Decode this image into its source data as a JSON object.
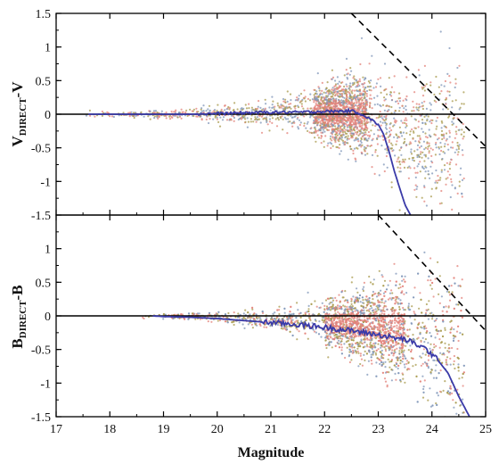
{
  "figure": {
    "xlabel": "Magnitude",
    "x_ticks": [
      "17",
      "18",
      "19",
      "20",
      "21",
      "22",
      "23",
      "24",
      "25"
    ],
    "colors": {
      "median_line": "#3a3aa8",
      "points_red": "#e3817a",
      "points_olive": "#a89a4c",
      "points_blue": "#7f96b8",
      "axes": "#000000"
    }
  },
  "chart_data": [
    {
      "type": "scatter",
      "panel": "top",
      "ylabel_main": "V",
      "ylabel_sub": "DIRECT",
      "ylabel_tail": "-V",
      "xlim": [
        17,
        25
      ],
      "ylim": [
        -1.5,
        1.5
      ],
      "y_ticks": [
        "1.5",
        "1",
        "0.5",
        "0",
        "-0.5",
        "-1",
        "-1.5"
      ],
      "y_tick_values": [
        1.5,
        1.0,
        0.5,
        0.0,
        -0.5,
        -1.0,
        -1.5
      ],
      "reference_line_y": 0,
      "limit_line": {
        "style": "dashed",
        "points": [
          [
            22.5,
            1.5
          ],
          [
            25.0,
            -0.48
          ]
        ]
      },
      "points_x_range": [
        17.5,
        24.6
      ],
      "dense_region": [
        21.8,
        22.8
      ],
      "series": [
        {
          "style": "solid",
          "x": [
            17.6,
            18.0,
            18.5,
            19.0,
            19.5,
            20.0,
            20.5,
            21.0,
            21.5,
            22.0,
            22.5,
            22.7,
            22.9,
            23.0,
            23.1,
            23.2,
            23.3,
            23.4,
            23.5,
            23.6
          ],
          "y": [
            0.0,
            0.0,
            0.0,
            0.0,
            0.0,
            0.01,
            0.02,
            0.03,
            0.03,
            0.04,
            0.05,
            0.0,
            -0.1,
            -0.15,
            -0.3,
            -0.55,
            -0.85,
            -1.1,
            -1.35,
            -1.5
          ]
        }
      ]
    },
    {
      "type": "scatter",
      "panel": "bottom",
      "ylabel_main": "B",
      "ylabel_sub": "DIRECT",
      "ylabel_tail": "-B",
      "xlim": [
        17,
        25
      ],
      "ylim": [
        -1.5,
        1.5
      ],
      "y_ticks": [
        "1",
        "0.5",
        "0",
        "-0.5",
        "-1",
        "-1.5"
      ],
      "y_tick_values": [
        1.0,
        0.5,
        0.0,
        -0.5,
        -1.0,
        -1.5
      ],
      "reference_line_y": 0,
      "limit_line": {
        "style": "dashed",
        "points": [
          [
            23.0,
            1.5
          ],
          [
            25.0,
            -0.22
          ]
        ]
      },
      "points_x_range": [
        18.5,
        24.6
      ],
      "dense_region": [
        22.0,
        23.5
      ],
      "series": [
        {
          "style": "solid",
          "x": [
            18.8,
            19.0,
            19.5,
            20.0,
            20.5,
            21.0,
            21.5,
            22.0,
            22.5,
            23.0,
            23.3,
            23.5,
            23.7,
            23.9,
            24.1,
            24.3,
            24.5,
            24.7
          ],
          "y": [
            0.0,
            -0.01,
            -0.02,
            -0.04,
            -0.07,
            -0.1,
            -0.13,
            -0.17,
            -0.22,
            -0.28,
            -0.33,
            -0.35,
            -0.42,
            -0.5,
            -0.65,
            -0.85,
            -1.2,
            -1.5
          ]
        }
      ]
    }
  ]
}
